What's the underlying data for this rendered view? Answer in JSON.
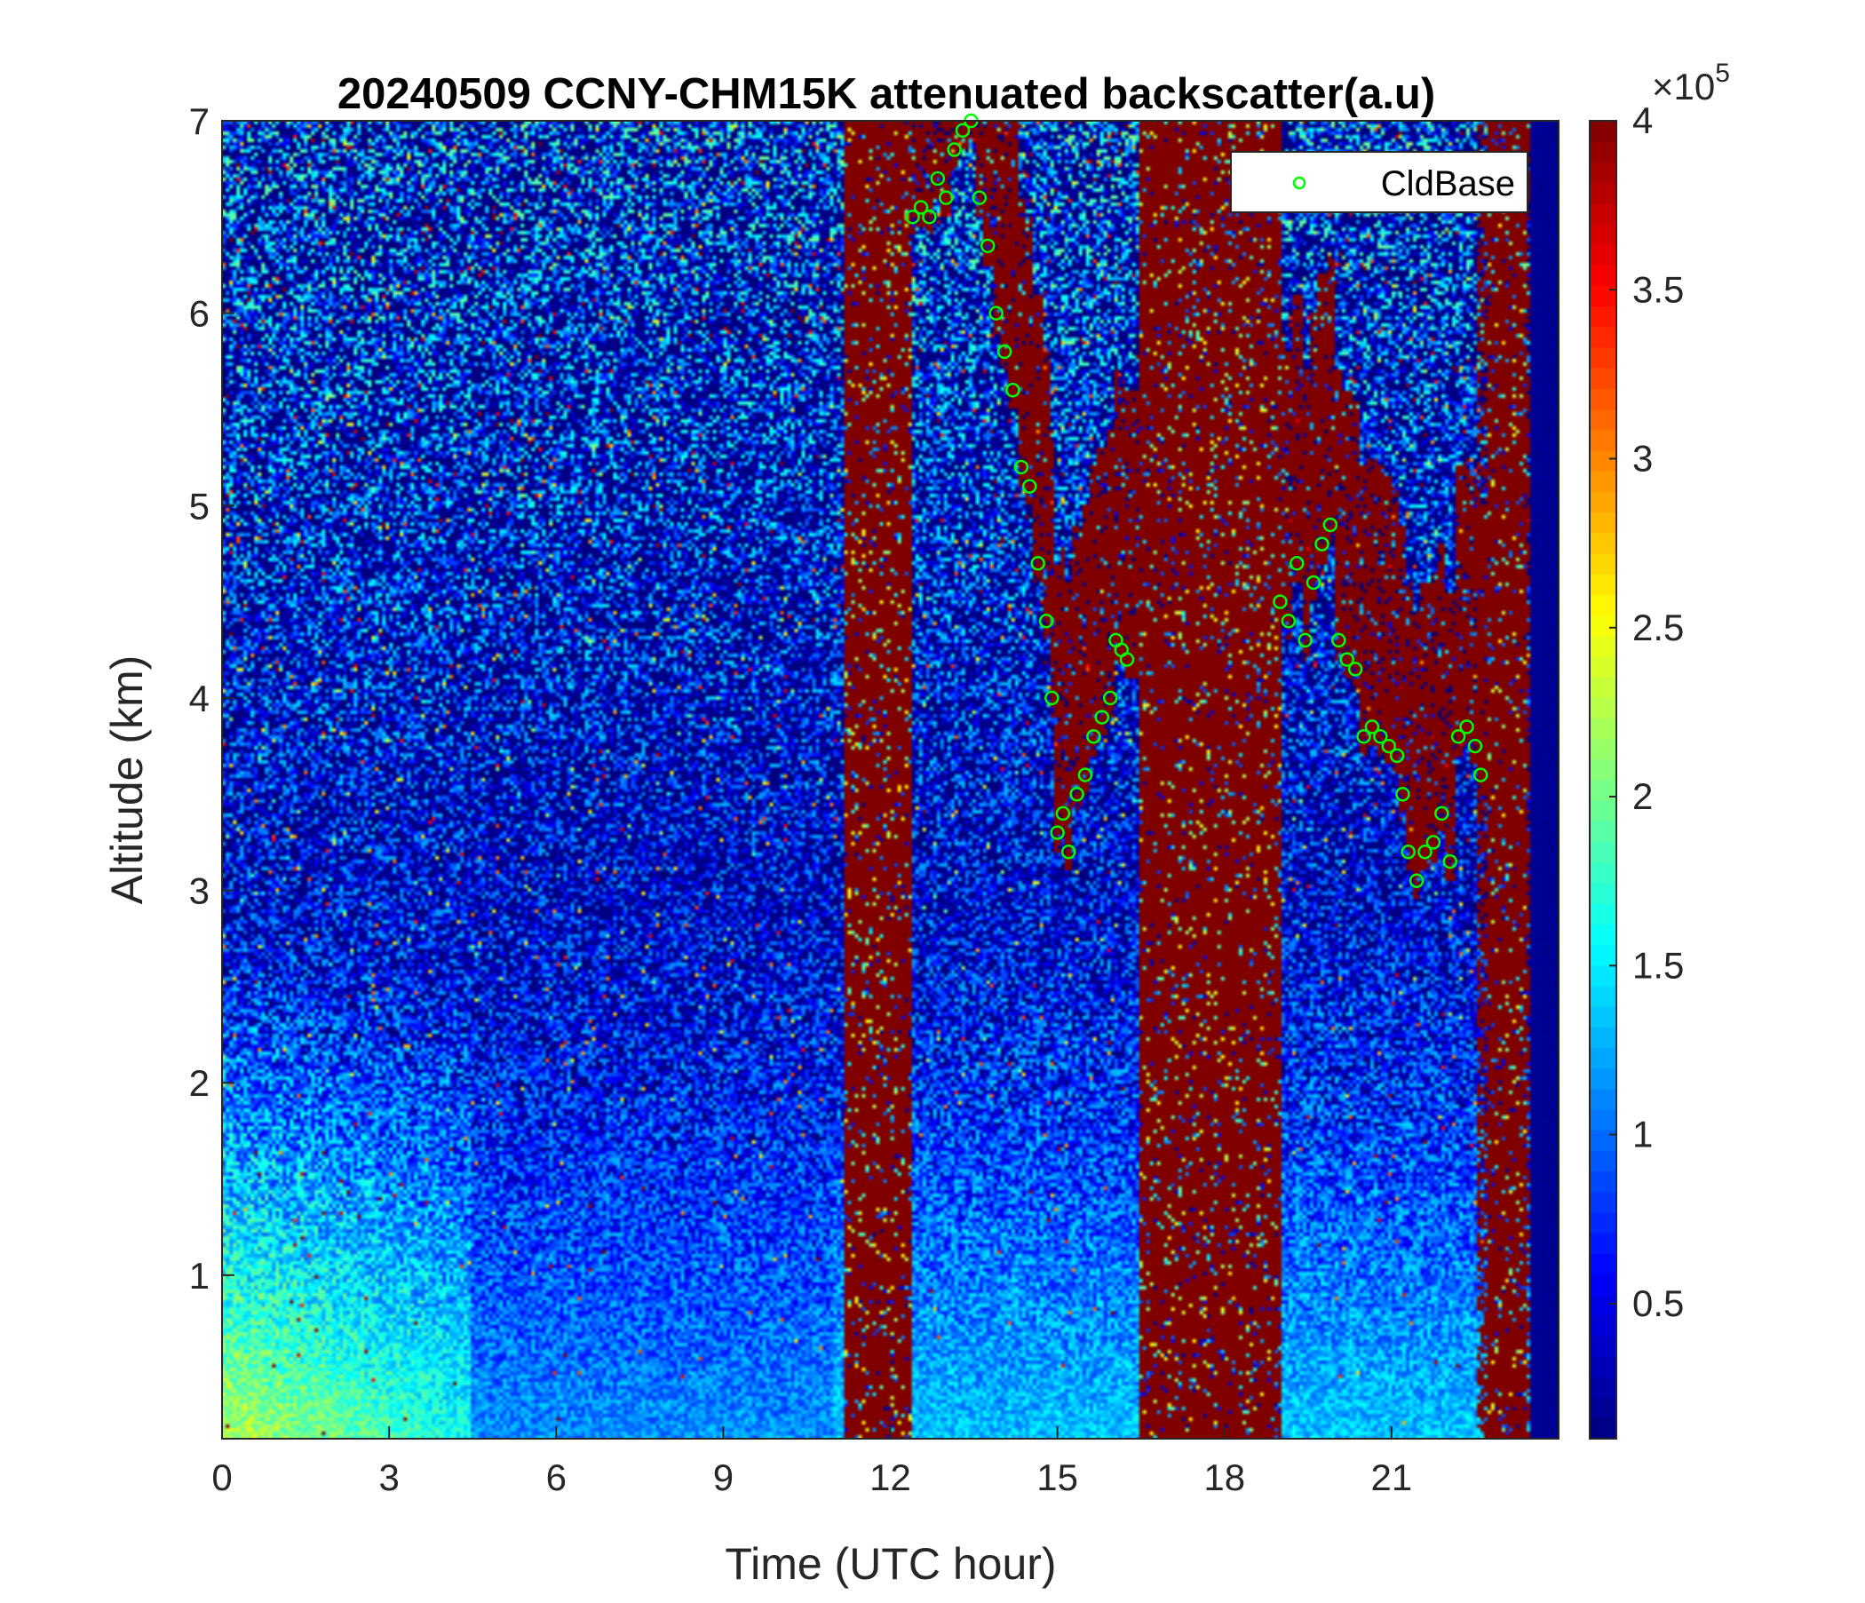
{
  "chart_data": {
    "type": "heatmap",
    "title": "20240509 CCNY-CHM15K attenuated backscatter(a.u)",
    "xlabel": "Time (UTC hour)",
    "ylabel": "Altitude (km)",
    "xlim": [
      0,
      24
    ],
    "ylim": [
      0.15,
      7
    ],
    "xticks": [
      0,
      3,
      6,
      9,
      12,
      15,
      18,
      21
    ],
    "xtick_labels": [
      "0",
      "3",
      "6",
      "9",
      "12",
      "15",
      "18",
      "21"
    ],
    "yticks": [
      1,
      2,
      3,
      4,
      5,
      6,
      7
    ],
    "ytick_labels": [
      "1",
      "2",
      "3",
      "4",
      "5",
      "6",
      "7"
    ],
    "colormap": "jet",
    "colorbar": {
      "clim": [
        0.1,
        4.0
      ],
      "multiplier_base": "×10",
      "multiplier_exp": "5",
      "ticks": [
        0.5,
        1,
        1.5,
        2,
        2.5,
        3,
        3.5,
        4
      ],
      "tick_labels": [
        "0.5",
        "1",
        "1.5",
        "2",
        "2.5",
        "3",
        "3.5",
        "4"
      ]
    },
    "saturated_periods_utc": [
      [
        11.2,
        12.4
      ],
      [
        16.5,
        19.0
      ],
      [
        22.7,
        23.4
      ]
    ],
    "legend": {
      "location": "top-right",
      "entries": [
        "CldBase"
      ]
    },
    "series": [
      {
        "name": "CldBase",
        "marker": "circle",
        "color": "#00ff00",
        "x": [
          12.4,
          12.55,
          12.7,
          12.85,
          13.0,
          13.15,
          13.3,
          13.45,
          13.6,
          13.75,
          13.9,
          14.05,
          14.2,
          14.35,
          14.5,
          14.65,
          14.8,
          14.9,
          15.0,
          15.1,
          15.2,
          15.35,
          15.5,
          15.65,
          15.8,
          15.95,
          16.05,
          16.15,
          16.25,
          19.0,
          19.15,
          19.3,
          19.45,
          19.6,
          19.75,
          19.9,
          20.05,
          20.2,
          20.35,
          20.5,
          20.65,
          20.8,
          20.95,
          21.1,
          21.2,
          21.3,
          21.45,
          21.6,
          21.75,
          21.9,
          22.05,
          22.2,
          22.35,
          22.5,
          22.6
        ],
        "y": [
          6.5,
          6.55,
          6.5,
          6.7,
          6.6,
          6.85,
          6.95,
          7.0,
          6.6,
          6.35,
          6.0,
          5.8,
          5.6,
          5.2,
          5.1,
          4.7,
          4.4,
          4.0,
          3.3,
          3.4,
          3.2,
          3.5,
          3.6,
          3.8,
          3.9,
          4.0,
          4.3,
          4.25,
          4.2,
          4.5,
          4.4,
          4.7,
          4.3,
          4.6,
          4.8,
          4.9,
          4.3,
          4.2,
          4.15,
          3.8,
          3.85,
          3.8,
          3.75,
          3.7,
          3.5,
          3.2,
          3.05,
          3.2,
          3.25,
          3.4,
          3.15,
          3.8,
          3.85,
          3.75,
          3.6
        ]
      }
    ]
  }
}
